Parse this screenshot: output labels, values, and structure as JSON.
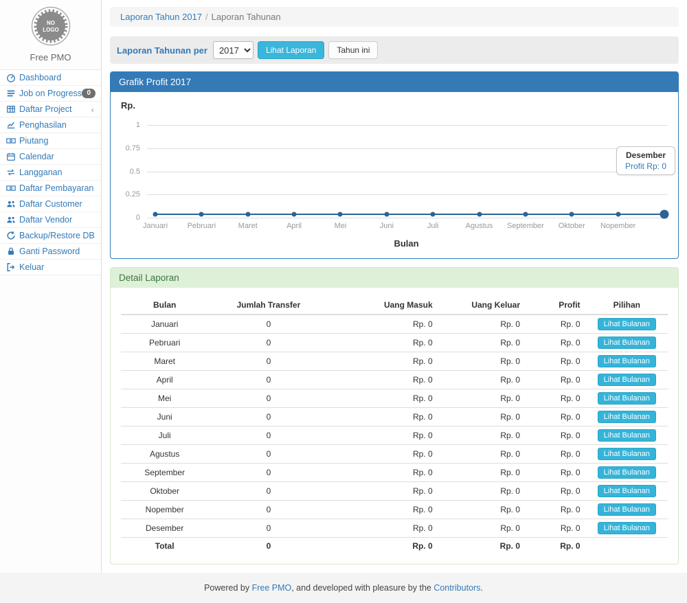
{
  "colors": {
    "primary": "#337ab7",
    "info_button": "#3ab6da",
    "success_header_bg": "#dff0d8",
    "success_header_text": "#3c763d",
    "chart_line": "#2a6496",
    "badge_bg": "#6f6f6f"
  },
  "sidebar": {
    "logo_text_line1": "NO",
    "logo_text_line2": "LOGO",
    "brand": "Free PMO",
    "items": [
      {
        "label": "Dashboard"
      },
      {
        "label": "Job on Progress",
        "badge": "0"
      },
      {
        "label": "Daftar Project",
        "chevron": "‹"
      },
      {
        "label": "Penghasilan"
      },
      {
        "label": "Piutang"
      },
      {
        "label": "Calendar"
      },
      {
        "label": "Langganan"
      },
      {
        "label": "Daftar Pembayaran"
      },
      {
        "label": "Daftar Customer"
      },
      {
        "label": "Daftar Vendor"
      },
      {
        "label": "Backup/Restore DB"
      },
      {
        "label": "Ganti Password"
      },
      {
        "label": "Keluar"
      }
    ]
  },
  "breadcrumb": {
    "link": "Laporan Tahun 2017",
    "separator": "/",
    "current": "Laporan Tahunan"
  },
  "filter": {
    "label": "Laporan Tahunan per",
    "year_value": "2017",
    "view_button": "Lihat Laporan",
    "this_year_button": "Tahun ini"
  },
  "chart_panel": {
    "title": "Grafik Profit 2017",
    "y_axis_label": "Rp.",
    "x_axis_label": "Bulan",
    "tooltip_title": "Desember",
    "tooltip_value": "Profit Rp: 0"
  },
  "chart_data": {
    "type": "line",
    "title": "Grafik Profit 2017",
    "xlabel": "Bulan",
    "ylabel": "Rp.",
    "x": [
      "Januari",
      "Pebruari",
      "Maret",
      "April",
      "Mei",
      "Juni",
      "Juli",
      "Agustus",
      "September",
      "Oktober",
      "Nopember",
      "Desember"
    ],
    "series": [
      {
        "name": "Profit",
        "values": [
          0,
          0,
          0,
          0,
          0,
          0,
          0,
          0,
          0,
          0,
          0,
          0
        ]
      }
    ],
    "ylim": [
      0,
      1
    ],
    "y_ticks": [
      "1",
      "0.75",
      "0.5",
      "0.25",
      "0"
    ],
    "x_tick_labels_visible": [
      "Januari",
      "Pebruari",
      "Maret",
      "April",
      "Mei",
      "Juni",
      "Juli",
      "Agustus",
      "September",
      "Oktober",
      "Nopember"
    ],
    "grid": true,
    "legend": "none"
  },
  "detail_panel": {
    "title": "Detail Laporan",
    "columns": [
      "Bulan",
      "Jumlah Transfer",
      "Uang Masuk",
      "Uang Keluar",
      "Profit",
      "Pilihan"
    ],
    "action_label": "Lihat Bulanan",
    "rows": [
      {
        "bulan": "Januari",
        "jumlah_transfer": "0",
        "uang_masuk": "Rp. 0",
        "uang_keluar": "Rp. 0",
        "profit": "Rp. 0"
      },
      {
        "bulan": "Pebruari",
        "jumlah_transfer": "0",
        "uang_masuk": "Rp. 0",
        "uang_keluar": "Rp. 0",
        "profit": "Rp. 0"
      },
      {
        "bulan": "Maret",
        "jumlah_transfer": "0",
        "uang_masuk": "Rp. 0",
        "uang_keluar": "Rp. 0",
        "profit": "Rp. 0"
      },
      {
        "bulan": "April",
        "jumlah_transfer": "0",
        "uang_masuk": "Rp. 0",
        "uang_keluar": "Rp. 0",
        "profit": "Rp. 0"
      },
      {
        "bulan": "Mei",
        "jumlah_transfer": "0",
        "uang_masuk": "Rp. 0",
        "uang_keluar": "Rp. 0",
        "profit": "Rp. 0"
      },
      {
        "bulan": "Juni",
        "jumlah_transfer": "0",
        "uang_masuk": "Rp. 0",
        "uang_keluar": "Rp. 0",
        "profit": "Rp. 0"
      },
      {
        "bulan": "Juli",
        "jumlah_transfer": "0",
        "uang_masuk": "Rp. 0",
        "uang_keluar": "Rp. 0",
        "profit": "Rp. 0"
      },
      {
        "bulan": "Agustus",
        "jumlah_transfer": "0",
        "uang_masuk": "Rp. 0",
        "uang_keluar": "Rp. 0",
        "profit": "Rp. 0"
      },
      {
        "bulan": "September",
        "jumlah_transfer": "0",
        "uang_masuk": "Rp. 0",
        "uang_keluar": "Rp. 0",
        "profit": "Rp. 0"
      },
      {
        "bulan": "Oktober",
        "jumlah_transfer": "0",
        "uang_masuk": "Rp. 0",
        "uang_keluar": "Rp. 0",
        "profit": "Rp. 0"
      },
      {
        "bulan": "Nopember",
        "jumlah_transfer": "0",
        "uang_masuk": "Rp. 0",
        "uang_keluar": "Rp. 0",
        "profit": "Rp. 0"
      },
      {
        "bulan": "Desember",
        "jumlah_transfer": "0",
        "uang_masuk": "Rp. 0",
        "uang_keluar": "Rp. 0",
        "profit": "Rp. 0"
      }
    ],
    "total_row": {
      "bulan": "Total",
      "jumlah_transfer": "0",
      "uang_masuk": "Rp. 0",
      "uang_keluar": "Rp. 0",
      "profit": "Rp. 0"
    }
  },
  "footer": {
    "text_prefix": "Powered by ",
    "link_free_pmo": "Free PMO",
    "text_middle": ", and developed with pleasure by the ",
    "link_contributors": "Contributors",
    "text_suffix": "."
  }
}
